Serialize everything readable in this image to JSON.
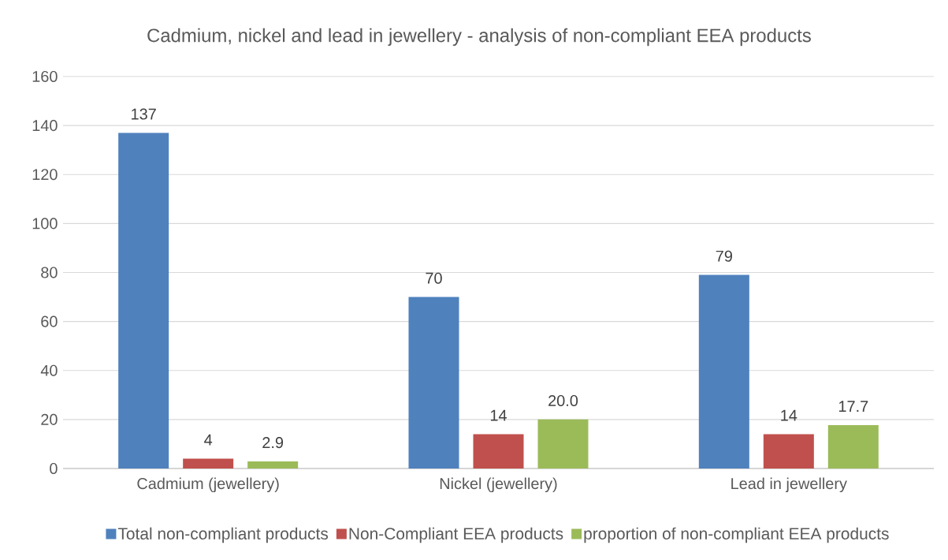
{
  "chart_data": {
    "type": "bar",
    "title": "Cadmium, nickel and lead in jewellery - analysis of non-compliant EEA products",
    "categories": [
      "Cadmium (jewellery)",
      "Nickel (jewellery)",
      "Lead in jewellery"
    ],
    "series": [
      {
        "name": "Total non-compliant products",
        "color": "#4f81bd",
        "values": [
          137,
          70,
          79
        ],
        "value_labels": [
          "137",
          "70",
          "79"
        ]
      },
      {
        "name": "Non-Compliant EEA products",
        "color": "#c0504d",
        "values": [
          4,
          14,
          14
        ],
        "value_labels": [
          "4",
          "14",
          "14"
        ]
      },
      {
        "name": "proportion of non-compliant EEA products",
        "color": "#9bbb59",
        "values": [
          2.9,
          20.0,
          17.7
        ],
        "value_labels": [
          "2.9",
          "20.0",
          "17.7"
        ]
      }
    ],
    "ylim": [
      0,
      160
    ],
    "yticks": [
      0,
      20,
      40,
      60,
      80,
      100,
      120,
      140,
      160
    ],
    "grid": "y",
    "legend": "bottom"
  }
}
